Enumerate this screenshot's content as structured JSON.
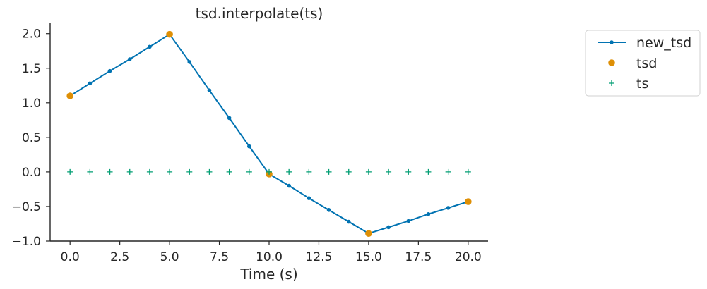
{
  "chart_data": {
    "type": "line",
    "title": "tsd.interpolate(ts)",
    "xlabel": "Time (s)",
    "ylabel": "",
    "xlim": [
      -1,
      21
    ],
    "ylim": [
      -1.0,
      2.15
    ],
    "x_ticks": [
      0,
      2.5,
      5,
      7.5,
      10,
      12.5,
      15,
      17.5,
      20
    ],
    "x_tick_labels": [
      "0.0",
      "2.5",
      "5.0",
      "7.5",
      "10.0",
      "12.5",
      "15.0",
      "17.5",
      "20.0"
    ],
    "y_ticks": [
      -1.0,
      -0.5,
      0.0,
      0.5,
      1.0,
      1.5,
      2.0
    ],
    "y_tick_labels": [
      "−1.0",
      "−0.5",
      "0.0",
      "0.5",
      "1.0",
      "1.5",
      "2.0"
    ],
    "grid": false,
    "legend_position": "outside-top-right",
    "series": [
      {
        "name": "new_tsd",
        "marker": "dot-line",
        "color": "#0173B2",
        "x": [
          0,
          1,
          2,
          3,
          4,
          5,
          6,
          7,
          8,
          9,
          10,
          11,
          12,
          13,
          14,
          15,
          16,
          17,
          18,
          19,
          20
        ],
        "y": [
          1.1,
          1.28,
          1.46,
          1.63,
          1.81,
          1.99,
          1.59,
          1.18,
          0.78,
          0.37,
          -0.03,
          -0.2,
          -0.38,
          -0.55,
          -0.72,
          -0.89,
          -0.8,
          -0.71,
          -0.61,
          -0.52,
          -0.43
        ]
      },
      {
        "name": "tsd",
        "marker": "circle",
        "color": "#DE8F05",
        "x": [
          0,
          5,
          10,
          15,
          20
        ],
        "y": [
          1.1,
          1.99,
          -0.03,
          -0.89,
          -0.43
        ]
      },
      {
        "name": "ts",
        "marker": "plus",
        "color": "#029E73",
        "x": [
          0,
          1,
          2,
          3,
          4,
          5,
          6,
          7,
          8,
          9,
          10,
          11,
          12,
          13,
          14,
          15,
          16,
          17,
          18,
          19,
          20
        ],
        "y": [
          0,
          0,
          0,
          0,
          0,
          0,
          0,
          0,
          0,
          0,
          0,
          0,
          0,
          0,
          0,
          0,
          0,
          0,
          0,
          0,
          0
        ]
      }
    ]
  }
}
